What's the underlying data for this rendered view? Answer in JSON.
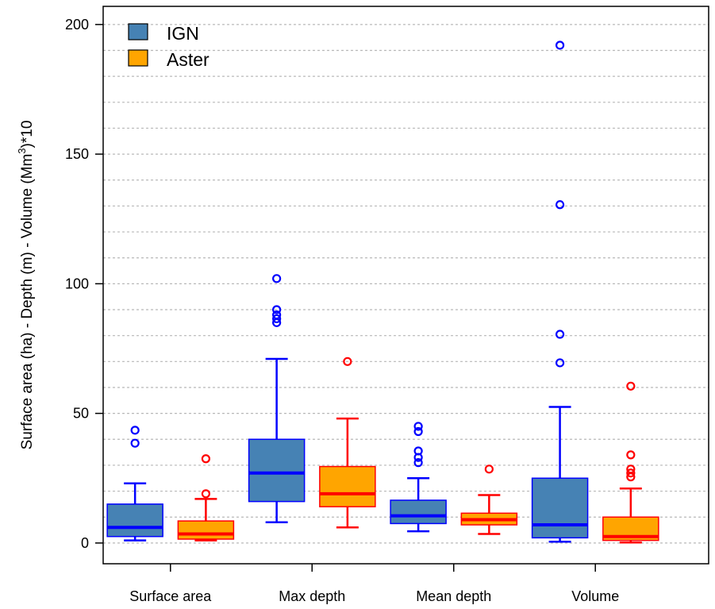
{
  "chart_data": {
    "type": "box",
    "ylabel_main": "Surface area (ha) - Depth (m) - Volume (Mm",
    "ylabel_sup": "3",
    "ylabel_end": ")*10",
    "categories": [
      "Surface area",
      "Max depth",
      "Mean depth",
      "Volume"
    ],
    "ylim": [
      -8,
      207
    ],
    "yticks": [
      0,
      50,
      100,
      150,
      200
    ],
    "gridlines": [
      0,
      10,
      20,
      30,
      40,
      50,
      60,
      70,
      80,
      90,
      100,
      110,
      120,
      130,
      140,
      150,
      160,
      170,
      180,
      190,
      200
    ],
    "grid": "dotted horizontal",
    "legend_position": "top-left",
    "series": [
      {
        "name": "IGN",
        "fill": "#4682b4",
        "stroke": "#0000ff",
        "boxes": [
          {
            "category": "Surface area",
            "whisker_low": 1,
            "q1": 2.5,
            "median": 6,
            "q3": 15,
            "whisker_high": 23,
            "outliers": [
              38.5,
              43.5
            ]
          },
          {
            "category": "Max depth",
            "whisker_low": 8,
            "q1": 16,
            "median": 27,
            "q3": 40,
            "whisker_high": 71,
            "outliers": [
              85,
              86.5,
              88,
              90,
              102
            ]
          },
          {
            "category": "Mean depth",
            "whisker_low": 4.5,
            "q1": 7.5,
            "median": 10.5,
            "q3": 16.5,
            "whisker_high": 25,
            "outliers": [
              31,
              33,
              35.5,
              43,
              45
            ]
          },
          {
            "category": "Volume",
            "whisker_low": 0.5,
            "q1": 2,
            "median": 7,
            "q3": 25,
            "whisker_high": 52.5,
            "outliers": [
              69.5,
              80.5,
              130.5,
              192
            ]
          }
        ]
      },
      {
        "name": "Aster",
        "fill": "#ffa500",
        "stroke": "#ff0000",
        "boxes": [
          {
            "category": "Surface area",
            "whisker_low": 1,
            "q1": 1.5,
            "median": 3.5,
            "q3": 8.5,
            "whisker_high": 17,
            "outliers": [
              19,
              32.5
            ]
          },
          {
            "category": "Max depth",
            "whisker_low": 6,
            "q1": 14,
            "median": 19,
            "q3": 29.5,
            "whisker_high": 48,
            "outliers": [
              70
            ]
          },
          {
            "category": "Mean depth",
            "whisker_low": 3.5,
            "q1": 7,
            "median": 9,
            "q3": 11.5,
            "whisker_high": 18.5,
            "outliers": [
              28.5
            ]
          },
          {
            "category": "Volume",
            "whisker_low": 0.2,
            "q1": 1,
            "median": 2.5,
            "q3": 10,
            "whisker_high": 21,
            "outliers": [
              25.5,
              27,
              28.5,
              34,
              60.5
            ]
          }
        ]
      }
    ]
  }
}
